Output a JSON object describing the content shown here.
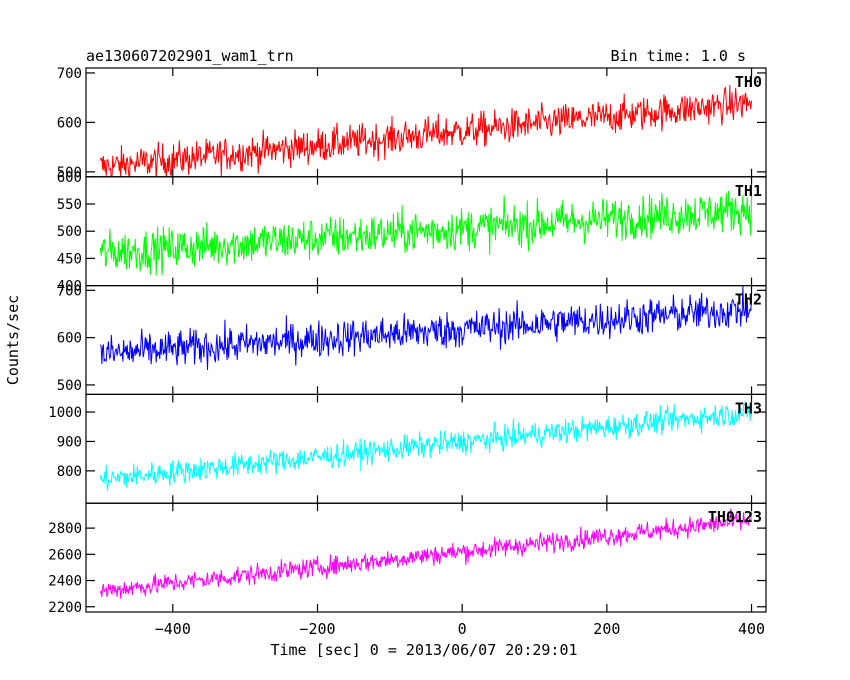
{
  "chart_data": {
    "type": "line",
    "title_left": "ae130607202901_wam1_trn",
    "title_right": "Bin time: 1.0 s",
    "xlabel": "Time [sec] 0 = 2013/06/07 20:29:01",
    "ylabel": "Counts/sec",
    "xlim": [
      -520,
      420
    ],
    "x_ticks": [
      -400,
      -200,
      0,
      200,
      400
    ],
    "x_tick_labels": [
      "−400",
      "−200",
      "0",
      "200",
      "400"
    ],
    "x_range": [
      -500,
      400
    ],
    "bin_time": 1.0,
    "panels": [
      {
        "name": "TH0",
        "color": "#ff0000",
        "ylim": [
          490,
          710
        ],
        "y_ticks": [
          500,
          600,
          700
        ],
        "y_tick_labels": [
          "500",
          "600",
          "700"
        ],
        "start": 510,
        "end": 640,
        "noise": 25
      },
      {
        "name": "TH1",
        "color": "#00ff00",
        "ylim": [
          400,
          600
        ],
        "y_ticks": [
          400,
          450,
          500,
          550,
          600
        ],
        "y_tick_labels": [
          "400",
          "450",
          "500",
          "550",
          "600"
        ],
        "start": 460,
        "end": 540,
        "noise": 28
      },
      {
        "name": "TH2",
        "color": "#0000ff",
        "ylim": [
          480,
          710
        ],
        "y_ticks": [
          500,
          600,
          700
        ],
        "y_tick_labels": [
          "500",
          "600",
          "700"
        ],
        "start": 565,
        "end": 660,
        "noise": 28
      },
      {
        "name": "TH3",
        "color": "#00ffff",
        "ylim": [
          690,
          1060
        ],
        "y_ticks": [
          800,
          900,
          1000
        ],
        "y_tick_labels": [
          "800",
          "900",
          "1000"
        ],
        "start": 770,
        "end": 1000,
        "noise": 30
      },
      {
        "name": "TH0123",
        "color": "#ff00ff",
        "ylim": [
          2160,
          2990
        ],
        "y_ticks": [
          2200,
          2400,
          2600,
          2800
        ],
        "y_tick_labels": [
          "2200",
          "2400",
          "2600",
          "2800"
        ],
        "start": 2320,
        "end": 2860,
        "noise": 55
      }
    ]
  }
}
